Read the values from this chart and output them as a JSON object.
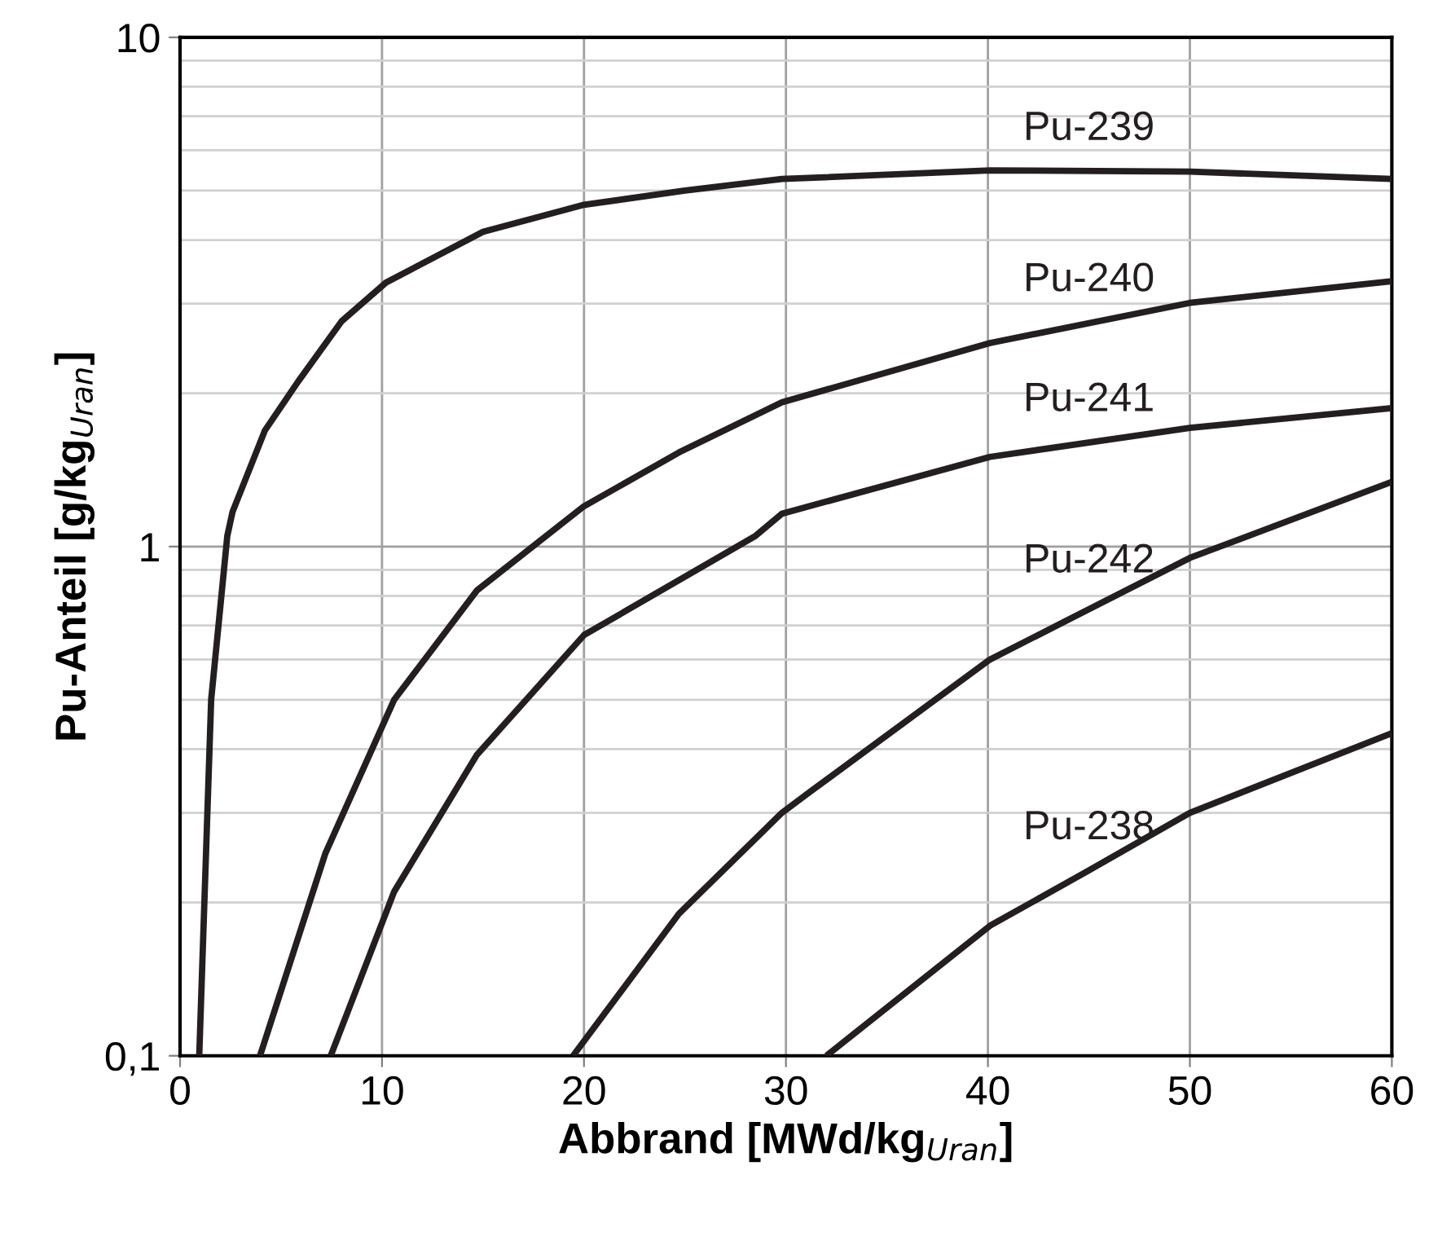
{
  "chart_data": {
    "type": "line",
    "xlabel": "Abbrand [MWd/kg$_{Uran}$]",
    "ylabel": "Pu-Anteil [g/kg$_{Uran}$]",
    "log": "y",
    "xlim": [
      0,
      60
    ],
    "xticks": [
      0,
      10,
      20,
      30,
      40,
      50,
      60
    ],
    "ylim": [
      0.1,
      10
    ],
    "yticks": [
      {
        "value": 0.1,
        "label": "0,1"
      },
      1,
      10
    ],
    "grid": true,
    "legend": false,
    "marker": "none",
    "line_style": "solid",
    "series": [
      {
        "name": "Pu-239",
        "color": "#231f20",
        "x": [
          0.95,
          1.54,
          2.34,
          2.6,
          4.2,
          5.85,
          8.0,
          10.2,
          15.0,
          20.0,
          25.0,
          29.8,
          40.1,
          50.0,
          60.0
        ],
        "values": [
          0.1,
          0.5,
          1.05,
          1.17,
          1.69,
          2.11,
          2.77,
          3.3,
          4.15,
          4.69,
          5.0,
          5.27,
          5.48,
          5.45,
          5.27
        ]
      },
      {
        "name": "Pu-240",
        "color": "#231f20",
        "x": [
          3.96,
          7.2,
          10.6,
          14.7,
          20.0,
          24.7,
          29.8,
          40.1,
          50.0,
          60.0
        ],
        "values": [
          0.1,
          0.25,
          0.5,
          0.82,
          1.2,
          1.53,
          1.92,
          2.51,
          3.01,
          3.32
        ]
      },
      {
        "name": "Pu-241",
        "color": "#231f20",
        "x": [
          7.46,
          10.6,
          14.7,
          20.0,
          28.5,
          29.8,
          40.1,
          50.0,
          60.0
        ],
        "values": [
          0.1,
          0.21,
          0.39,
          0.67,
          1.05,
          1.16,
          1.5,
          1.71,
          1.87
        ]
      },
      {
        "name": "Pu-242",
        "color": "#231f20",
        "x": [
          19.46,
          24.7,
          29.8,
          31.2,
          40.1,
          50.0,
          60.0
        ],
        "values": [
          0.1,
          0.19,
          0.3,
          0.33,
          0.6,
          0.95,
          1.34
        ]
      },
      {
        "name": "Pu-238",
        "color": "#231f20",
        "x": [
          32.0,
          40.1,
          44.9,
          50.0,
          60.0
        ],
        "values": [
          0.1,
          0.18,
          0.23,
          0.3,
          0.43
        ]
      }
    ]
  }
}
